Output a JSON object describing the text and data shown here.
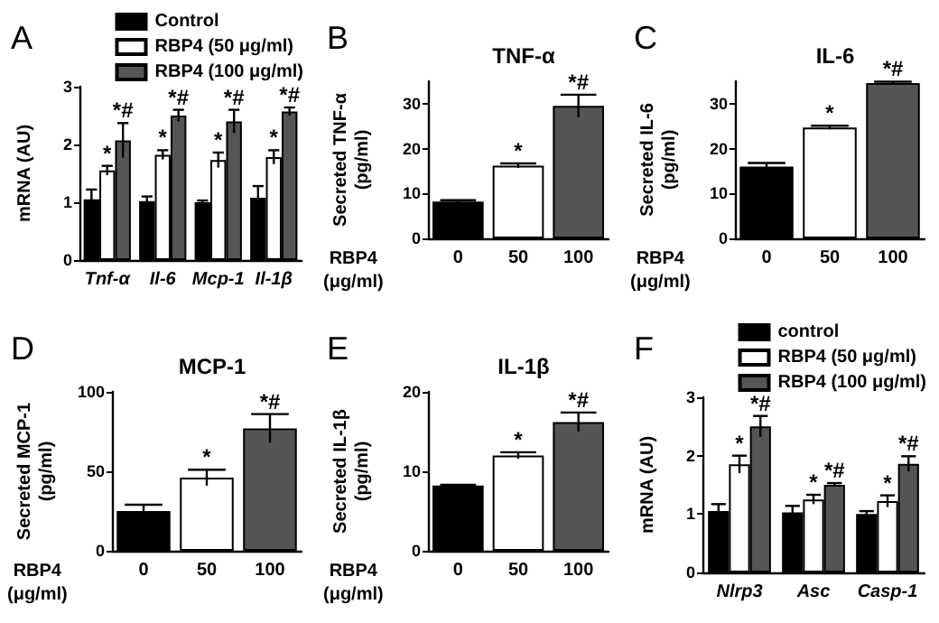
{
  "chart_data": [
    {
      "type": "bar",
      "ylabel": "mRNA (AU)",
      "annotations": [
        "A"
      ],
      "categories": [
        "Tnf-α",
        "Il-6",
        "Mcp-1",
        "Il-1β"
      ],
      "ylim": [
        0,
        3
      ],
      "yticks": [
        0,
        1,
        2,
        3
      ],
      "legend": "top right",
      "grid": false,
      "series": [
        {
          "name": "Control",
          "color": "#000000",
          "values": [
            1.05,
            1.02,
            1.0,
            1.08
          ],
          "errors": [
            0.17,
            0.08,
            0.03,
            0.2
          ],
          "value_labels": [
            null,
            null,
            null,
            null
          ]
        },
        {
          "name": "RBP4 (50 μg/ml)",
          "color": "#ffffff",
          "values": [
            1.55,
            1.82,
            1.73,
            1.78
          ],
          "errors": [
            0.08,
            0.08,
            0.13,
            0.12
          ],
          "value_labels": [
            "*",
            "*",
            "*",
            "*"
          ]
        },
        {
          "name": "RBP4 (100 μg/ml)",
          "color": "#555555",
          "values": [
            2.07,
            2.5,
            2.4,
            2.57
          ],
          "errors": [
            0.3,
            0.1,
            0.2,
            0.07
          ],
          "value_labels": [
            "*#",
            "*#",
            "*#",
            "*#"
          ]
        }
      ]
    },
    {
      "type": "bar",
      "title": "TNF-α",
      "ylabel": "Secreted TNF-α (pg/ml)",
      "xlabel": "RBP4 (μg/ml)",
      "annotations": [
        "B"
      ],
      "categories": [
        "0",
        "50",
        "100"
      ],
      "values": [
        8.2,
        16.2,
        29.5
      ],
      "errors": [
        0.3,
        0.5,
        2.5
      ],
      "value_labels": [
        null,
        "*",
        "*#"
      ],
      "colors": [
        "#000000",
        "#ffffff",
        "#555555"
      ],
      "ylim": [
        0,
        35
      ],
      "yticks": [
        0,
        10,
        20,
        30
      ],
      "grid": false
    },
    {
      "type": "bar",
      "title": "IL-6",
      "ylabel": "Secreted IL-6 (pg/ml)",
      "xlabel": "RBP4 (μg/ml)",
      "annotations": [
        "C"
      ],
      "categories": [
        "0",
        "50",
        "100"
      ],
      "values": [
        16.0,
        24.7,
        34.6
      ],
      "errors": [
        0.8,
        0.4,
        0.3
      ],
      "value_labels": [
        null,
        "*",
        "*#"
      ],
      "colors": [
        "#000000",
        "#ffffff",
        "#555555"
      ],
      "ylim": [
        0,
        35
      ],
      "yticks": [
        0,
        10,
        20,
        30
      ],
      "grid": false
    },
    {
      "type": "bar",
      "title": "MCP-1",
      "ylabel": "Secreted MCP-1 (pg/ml)",
      "xlabel": "RBP4 (μg/ml)",
      "annotations": [
        "D"
      ],
      "categories": [
        "0",
        "50",
        "100"
      ],
      "values": [
        25,
        46,
        77
      ],
      "errors": [
        4,
        5,
        9
      ],
      "value_labels": [
        null,
        "*",
        "*#"
      ],
      "colors": [
        "#000000",
        "#ffffff",
        "#555555"
      ],
      "ylim": [
        0,
        100
      ],
      "yticks": [
        0,
        50,
        100
      ],
      "grid": false
    },
    {
      "type": "bar",
      "title": "IL-1β",
      "ylabel": "Secreted IL-1β (pg/ml)",
      "xlabel": "RBP4 (μg/ml)",
      "annotations": [
        "E"
      ],
      "categories": [
        "0",
        "50",
        "100"
      ],
      "values": [
        8.2,
        12.0,
        16.2
      ],
      "errors": [
        0.1,
        0.4,
        1.2
      ],
      "value_labels": [
        null,
        "*",
        "*#"
      ],
      "colors": [
        "#000000",
        "#ffffff",
        "#555555"
      ],
      "ylim": [
        0,
        20
      ],
      "yticks": [
        0,
        10,
        20
      ],
      "grid": false
    },
    {
      "type": "bar",
      "ylabel": "mRNA (AU)",
      "annotations": [
        "F"
      ],
      "categories": [
        "Nlrp3",
        "Asc",
        "Casp-1"
      ],
      "ylim": [
        0,
        3
      ],
      "yticks": [
        0,
        1,
        2,
        3
      ],
      "legend": "top right",
      "grid": false,
      "series": [
        {
          "name": "control",
          "color": "#000000",
          "values": [
            1.05,
            1.03,
            1.0
          ],
          "errors": [
            0.12,
            0.11,
            0.05
          ],
          "value_labels": [
            null,
            null,
            null
          ]
        },
        {
          "name": "RBP4 (50 μg/ml)",
          "color": "#ffffff",
          "values": [
            1.85,
            1.25,
            1.22
          ],
          "errors": [
            0.15,
            0.08,
            0.1
          ],
          "value_labels": [
            "*",
            "*",
            "*"
          ]
        },
        {
          "name": "RBP4 (100 μg/ml)",
          "color": "#555555",
          "values": [
            2.5,
            1.5,
            1.86
          ],
          "errors": [
            0.18,
            0.03,
            0.13
          ],
          "value_labels": [
            "*#",
            "*#",
            "*#"
          ]
        }
      ]
    }
  ]
}
